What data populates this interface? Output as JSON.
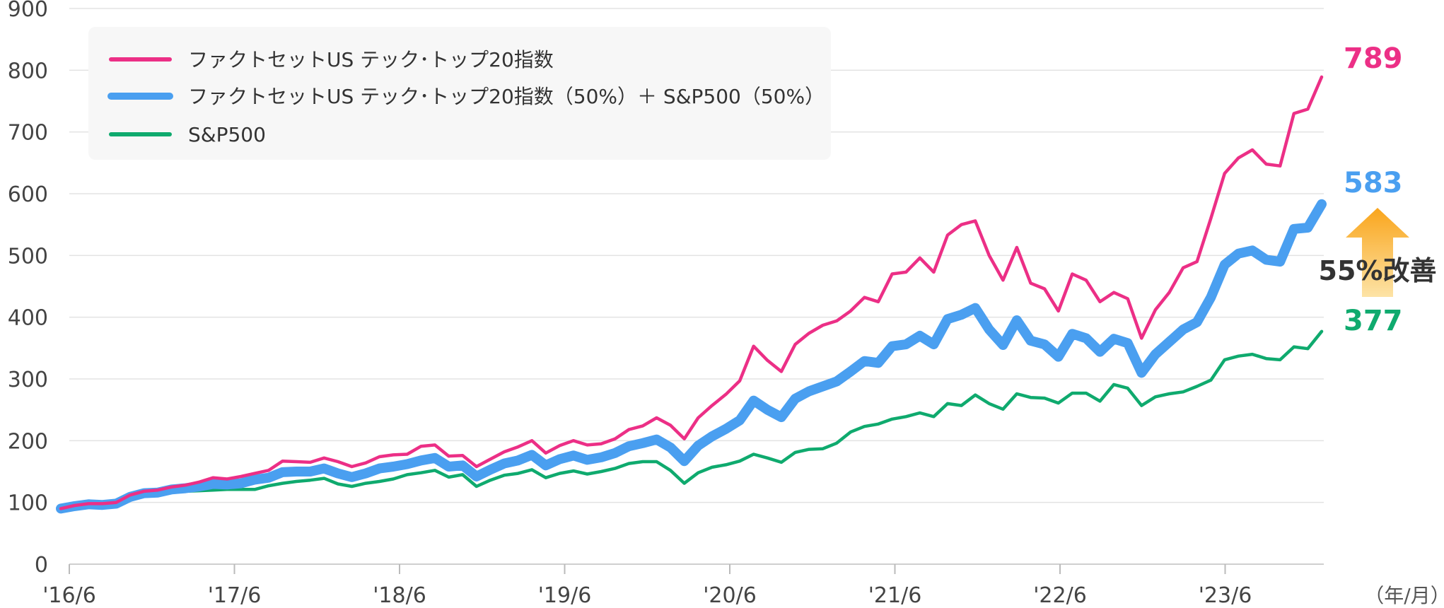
{
  "chart_data": {
    "type": "line",
    "x_unit_label": "（年/月）",
    "x_ticks": [
      "'16/6",
      "'17/6",
      "'18/6",
      "'19/6",
      "'20/6",
      "'21/6",
      "'22/6",
      "'23/6"
    ],
    "y_ticks": [
      0,
      100,
      200,
      300,
      400,
      500,
      600,
      700,
      800,
      900
    ],
    "ylim": [
      0,
      900
    ],
    "x_range": [
      "2016-06",
      "2024-03"
    ],
    "grid": true,
    "legend_position": "top-left",
    "series": [
      {
        "name": "ファクトセットUS テック･トップ20指数",
        "color": "#ec2f86",
        "end_label": "789",
        "values": [
          90,
          95,
          98,
          98,
          100,
          112,
          118,
          120,
          125,
          128,
          133,
          140,
          138,
          142,
          147,
          152,
          167,
          166,
          165,
          172,
          166,
          158,
          164,
          174,
          177,
          178,
          191,
          193,
          175,
          176,
          158,
          170,
          182,
          190,
          200,
          180,
          192,
          200,
          193,
          195,
          203,
          218,
          224,
          237,
          225,
          203,
          237,
          257,
          275,
          297,
          353,
          330,
          312,
          356,
          374,
          387,
          394,
          410,
          432,
          425,
          470,
          473,
          496,
          473,
          533,
          550,
          556,
          500,
          460,
          513,
          455,
          446,
          410,
          470,
          460,
          425,
          440,
          430,
          366,
          412,
          440,
          480,
          490,
          560,
          633,
          658,
          671,
          648,
          645,
          730,
          737,
          789
        ]
      },
      {
        "name": "ファクトセットUS テック･トップ20指数（50%）＋ S&P500（50%）",
        "color": "#4a9ff0",
        "end_label": "583",
        "values": [
          90,
          94,
          97,
          96,
          98,
          109,
          115,
          116,
          121,
          123,
          126,
          130,
          129,
          131,
          137,
          140,
          149,
          150,
          150,
          155,
          147,
          141,
          147,
          155,
          158,
          162,
          168,
          172,
          158,
          160,
          142,
          153,
          163,
          168,
          177,
          160,
          170,
          176,
          169,
          173,
          180,
          191,
          196,
          202,
          189,
          167,
          192,
          207,
          219,
          233,
          265,
          250,
          238,
          268,
          280,
          288,
          296,
          312,
          329,
          326,
          353,
          356,
          370,
          356,
          397,
          404,
          415,
          380,
          355,
          395,
          362,
          356,
          336,
          373,
          366,
          344,
          365,
          358,
          310,
          340,
          360,
          380,
          392,
          432,
          485,
          503,
          508,
          493,
          490,
          543,
          545,
          583
        ]
      },
      {
        "name": "S&P500",
        "color": "#0faa6e",
        "end_label": "377",
        "values": [
          90,
          93,
          95,
          94,
          96,
          106,
          111,
          112,
          116,
          118,
          119,
          120,
          121,
          121,
          121,
          127,
          131,
          134,
          136,
          139,
          130,
          126,
          131,
          134,
          138,
          145,
          148,
          152,
          141,
          145,
          126,
          136,
          144,
          147,
          153,
          140,
          147,
          151,
          146,
          150,
          155,
          163,
          166,
          166,
          152,
          131,
          148,
          157,
          161,
          167,
          178,
          172,
          165,
          181,
          186,
          187,
          196,
          214,
          223,
          227,
          235,
          239,
          245,
          239,
          260,
          257,
          274,
          260,
          251,
          276,
          270,
          269,
          261,
          277,
          277,
          264,
          291,
          285,
          257,
          271,
          276,
          279,
          288,
          298,
          331,
          337,
          340,
          333,
          331,
          352,
          349,
          377
        ]
      }
    ],
    "annotation": "55%改善"
  }
}
